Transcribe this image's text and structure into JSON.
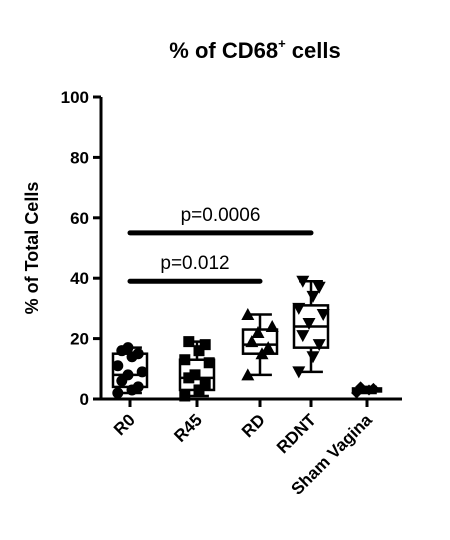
{
  "chart_data": {
    "type": "box",
    "title": "% of CD68",
    "title_superscript": "+",
    "title_suffix": " cells",
    "xlabel": "",
    "ylabel": "% of Total Cells",
    "ylim": [
      0,
      100
    ],
    "yticks": [
      0,
      20,
      40,
      60,
      80,
      100
    ],
    "ytick_labels": [
      "0",
      "20",
      "40",
      "60",
      "80",
      "100"
    ],
    "grid": false,
    "categories": [
      "R0",
      "R45",
      "RD",
      "RDNT",
      "Sham Vagina"
    ],
    "groups": [
      {
        "name": "R0",
        "marker": "circle",
        "min": 2,
        "q1": 4,
        "median": 8,
        "q3": 15,
        "max": 17,
        "points": [
          2,
          3,
          4,
          6,
          8,
          9,
          11,
          14,
          15,
          16,
          17
        ]
      },
      {
        "name": "R45",
        "marker": "square",
        "min": 1,
        "q1": 3,
        "median": 7,
        "q3": 13,
        "max": 19,
        "points": [
          1,
          3,
          5,
          7,
          8,
          12,
          13,
          16,
          18,
          19
        ]
      },
      {
        "name": "RD",
        "marker": "triangle-up",
        "min": 8,
        "q1": 15,
        "median": 18,
        "q3": 23,
        "max": 28,
        "points": [
          8,
          15,
          17,
          19,
          22,
          24,
          28
        ]
      },
      {
        "name": "RDNT",
        "marker": "triangle-down",
        "min": 9,
        "q1": 17,
        "median": 24,
        "q3": 31,
        "max": 39,
        "points": [
          9,
          14,
          18,
          21,
          25,
          28,
          30,
          34,
          37,
          39
        ]
      },
      {
        "name": "Sham Vagina",
        "marker": "diamond",
        "min": 2,
        "q1": 2.5,
        "median": 3,
        "q3": 3.5,
        "max": 4,
        "points": [
          2,
          3,
          3.5,
          4
        ]
      }
    ],
    "annotations": [
      {
        "text": "p=0.0006",
        "from": "R0",
        "to": "RDNT",
        "y": 55
      },
      {
        "text": "p=0.012",
        "from": "R0",
        "to": "RD",
        "y": 39
      }
    ]
  }
}
